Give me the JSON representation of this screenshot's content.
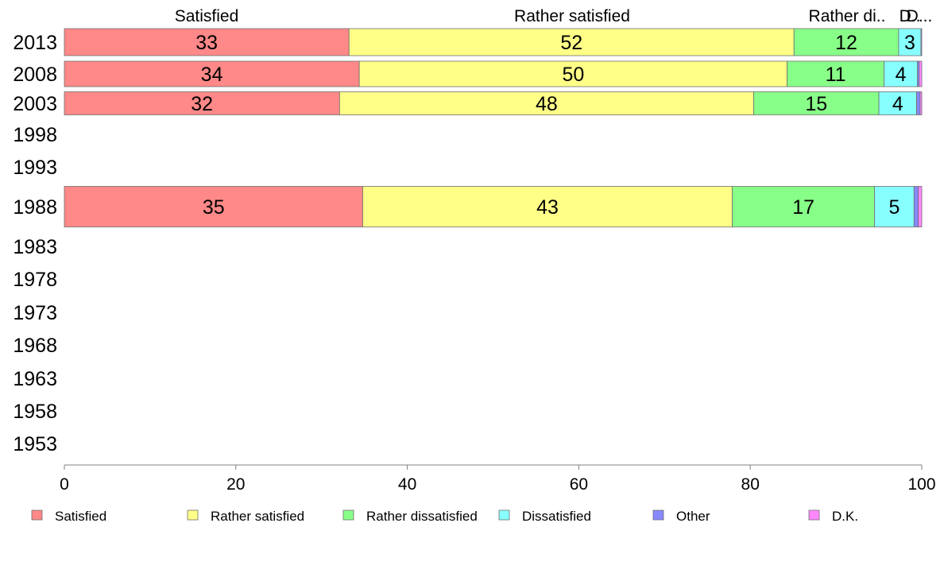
{
  "chart_data": {
    "type": "bar",
    "orientation": "horizontal",
    "stacked": true,
    "categories": [
      "2013",
      "2008",
      "2003",
      "1998",
      "1993",
      "1988",
      "1983",
      "1978",
      "1973",
      "1968",
      "1963",
      "1958",
      "1953"
    ],
    "series": [
      {
        "name": "Satisfied",
        "color": "#ff8888",
        "values": [
          33.2,
          34.4,
          32.1,
          null,
          null,
          34.8,
          null,
          null,
          null,
          null,
          null,
          null,
          null
        ],
        "labels": [
          "33",
          "34",
          "32",
          "",
          "",
          "35",
          "",
          "",
          "",
          "",
          "",
          "",
          ""
        ]
      },
      {
        "name": "Rather satisfied",
        "color": "#ffff88",
        "values": [
          51.9,
          49.9,
          48.3,
          null,
          null,
          43.1,
          null,
          null,
          null,
          null,
          null,
          null,
          null
        ],
        "labels": [
          "52",
          "50",
          "48",
          "",
          "",
          "43",
          "",
          "",
          "",
          "",
          "",
          "",
          ""
        ]
      },
      {
        "name": "Rather dissatisfied",
        "color": "#88ff88",
        "values": [
          12.2,
          11.3,
          14.6,
          null,
          null,
          16.6,
          null,
          null,
          null,
          null,
          null,
          null,
          null
        ],
        "labels": [
          "12",
          "11",
          "15",
          "",
          "",
          "17",
          "",
          "",
          "",
          "",
          "",
          "",
          ""
        ]
      },
      {
        "name": "Dissatisfied",
        "color": "#88ffff",
        "values": [
          2.6,
          3.9,
          4.4,
          null,
          null,
          4.6,
          null,
          null,
          null,
          null,
          null,
          null,
          null
        ],
        "labels": [
          "3",
          "4",
          "4",
          "",
          "",
          "5",
          "",
          "",
          "",
          "",
          "",
          "",
          ""
        ]
      },
      {
        "name": "Other",
        "color": "#8888ff",
        "values": [
          0.1,
          0.2,
          0.4,
          null,
          null,
          0.5,
          null,
          null,
          null,
          null,
          null,
          null,
          null
        ],
        "labels": [
          "",
          "",
          "",
          "",
          "",
          "",
          "",
          "",
          "",
          "",
          "",
          "",
          ""
        ]
      },
      {
        "name": "D.K.",
        "color": "#ff88ff",
        "values": [
          0.0,
          0.3,
          0.2,
          null,
          null,
          0.4,
          null,
          null,
          null,
          null,
          null,
          null,
          null
        ],
        "labels": [
          "",
          "",
          "",
          "",
          "",
          "",
          "",
          "",
          "",
          "",
          "",
          "",
          ""
        ]
      }
    ],
    "top_labels": [
      "Satisfied",
      "Rather satisfied",
      "Rather di..",
      "D..",
      "D..."
    ],
    "xlim": [
      0,
      100
    ],
    "xticks": [
      0,
      20,
      40,
      60,
      80,
      100
    ],
    "grid": false,
    "legend_position": "bottom"
  }
}
